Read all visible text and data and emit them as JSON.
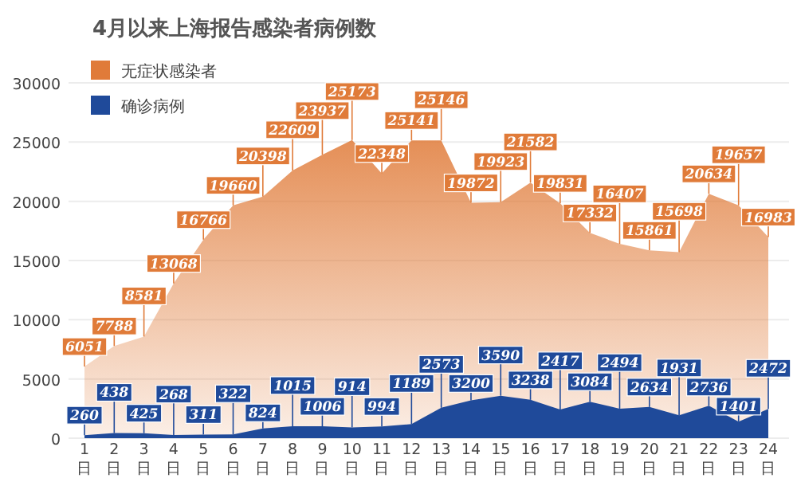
{
  "chart_data": {
    "type": "area",
    "title": "4月以来上海报告感染者病例数",
    "categories": [
      "1日",
      "2日",
      "3日",
      "4日",
      "5日",
      "6日",
      "7日",
      "8日",
      "9日",
      "10日",
      "11日",
      "12日",
      "13日",
      "14日",
      "15日",
      "16日",
      "17日",
      "18日",
      "19日",
      "20日",
      "21日",
      "22日",
      "23日",
      "24日"
    ],
    "series": [
      {
        "name": "无症状感染者",
        "color": "#e07b39",
        "values": [
          6051,
          7788,
          8581,
          13068,
          16766,
          19660,
          20398,
          22609,
          23937,
          25173,
          22348,
          25141,
          25146,
          19872,
          19923,
          21582,
          19831,
          17332,
          16407,
          15861,
          15698,
          20634,
          19657,
          16983
        ]
      },
      {
        "name": "确诊病例",
        "color": "#1f4a9a",
        "values": [
          260,
          438,
          425,
          268,
          311,
          322,
          824,
          1015,
          1006,
          914,
          994,
          1189,
          2573,
          3200,
          3590,
          3238,
          2417,
          3084,
          2494,
          2634,
          1931,
          2736,
          1401,
          2472
        ]
      }
    ],
    "ylim": [
      0,
      30000
    ],
    "yticks": [
      0,
      5000,
      10000,
      15000,
      20000,
      25000,
      30000
    ],
    "grid": "y",
    "legend": "top left",
    "data_labels": true
  }
}
